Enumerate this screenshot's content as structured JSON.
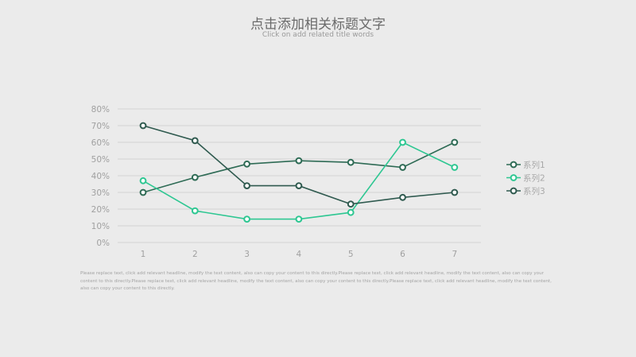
{
  "title": "点击添加相关标题文字",
  "subtitle": "Click on add related title words",
  "body_text": "Please replace text, click add relevant headline, modify the text content, also can copy your content to this directly.Please replace text, click add relevant headline, modify the text content, also can copy your content to this directly.Please replace text, click add relevant headline, modify the text content, also can copy your content to this directly.Please replace text, click add relevant headline, modify the text content, also can copy your content to this directly.",
  "colors": {
    "background": "#ebebeb",
    "grid": "#d3d3d3",
    "axis_text": "#a0a0a0",
    "legend_text": "#a8a8a8"
  },
  "chart_data": {
    "type": "line",
    "x": [
      "1",
      "2",
      "3",
      "4",
      "5",
      "6",
      "7"
    ],
    "ylim": [
      0,
      80
    ],
    "yticks": [
      0,
      10,
      20,
      30,
      40,
      50,
      60,
      70,
      80
    ],
    "ytick_labels": [
      "0%",
      "10%",
      "20%",
      "30%",
      "40%",
      "50%",
      "60%",
      "70%",
      "80%"
    ],
    "grid": true,
    "legend_position": "right",
    "series": [
      {
        "name": "系列1",
        "color": "#2e6b55",
        "values": [
          30,
          39,
          47,
          49,
          48,
          45,
          60
        ]
      },
      {
        "name": "系列2",
        "color": "#2ec792",
        "values": [
          37,
          19,
          14,
          14,
          18,
          60,
          45
        ]
      },
      {
        "name": "系列3",
        "color": "#2f5a4f",
        "values": [
          70,
          61,
          34,
          34,
          23,
          27,
          30
        ]
      }
    ]
  }
}
